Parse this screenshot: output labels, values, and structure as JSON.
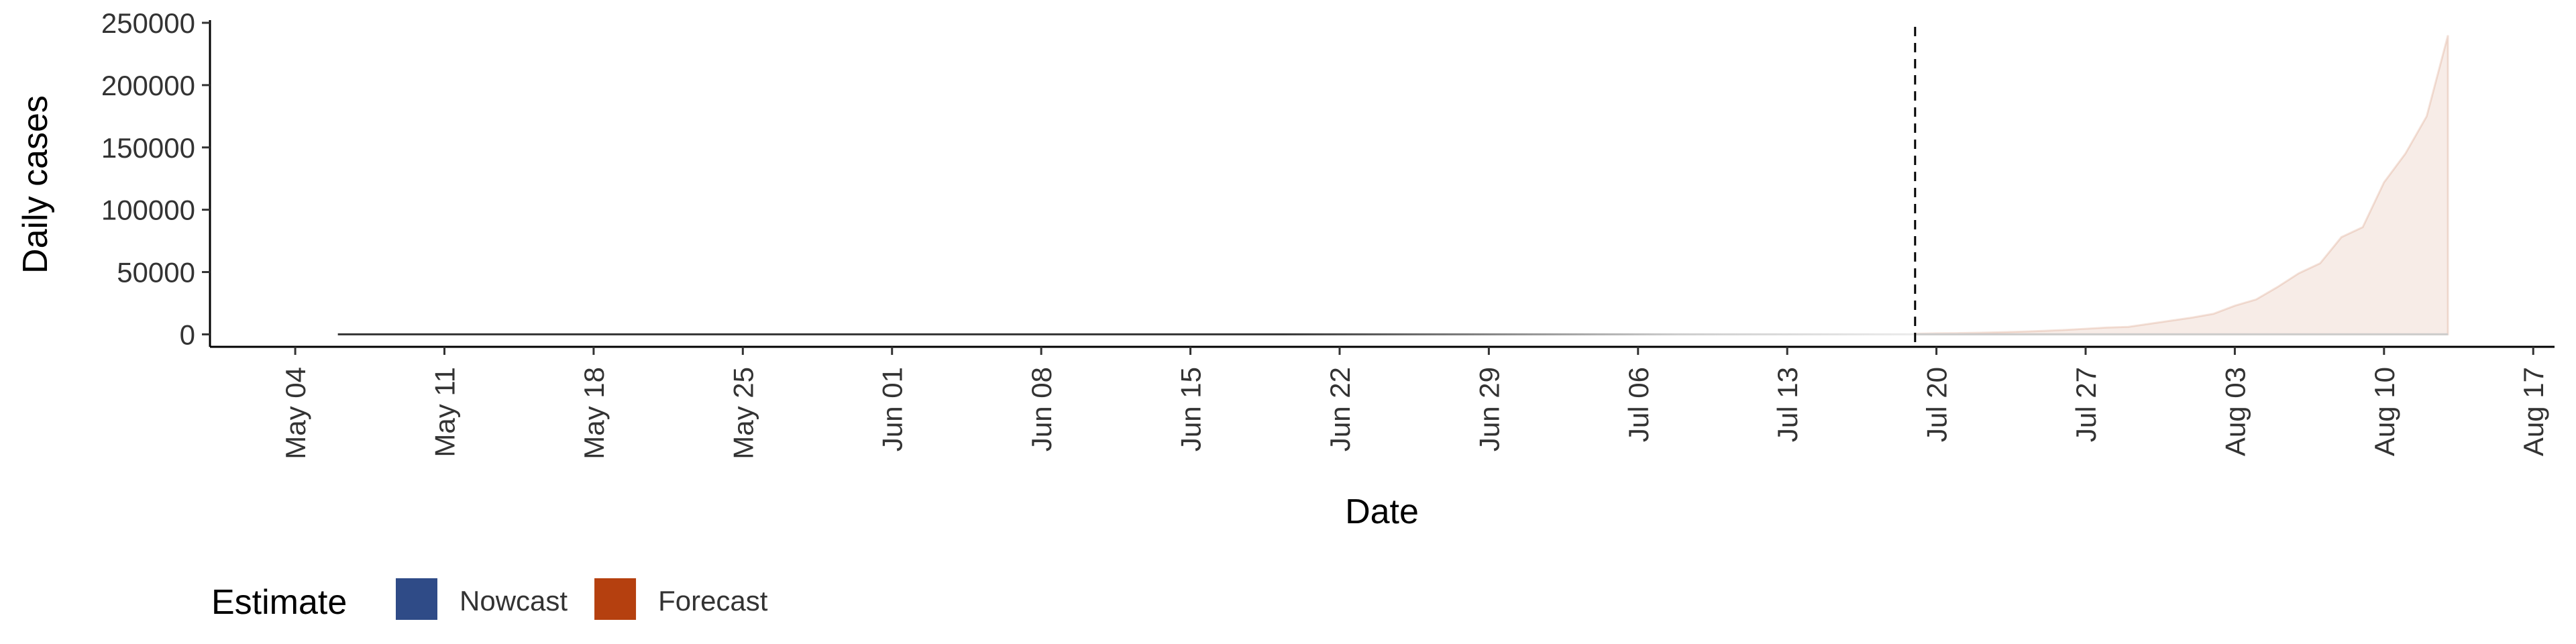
{
  "chart_data": {
    "type": "area",
    "x_label": "Date",
    "y_label": "Daily cases",
    "legend_title": "Estimate",
    "xlim": [
      "Apr 30",
      "Aug 18"
    ],
    "xticks": [
      "May 04",
      "May 11",
      "May 18",
      "May 25",
      "Jun 01",
      "Jun 08",
      "Jun 15",
      "Jun 22",
      "Jun 29",
      "Jul 06",
      "Jul 13",
      "Jul 20",
      "Jul 27",
      "Aug 03",
      "Aug 10",
      "Aug 17"
    ],
    "ylim": [
      -10000,
      250000
    ],
    "yticks": [
      0,
      50000,
      100000,
      150000,
      200000,
      250000
    ],
    "vline": "Jul 19",
    "line_color": "#333333",
    "series": [
      {
        "name": "Nowcast",
        "color": "#2f4b87",
        "x": [
          "May 06",
          "Jun 01",
          "Jun 26",
          "Jul 19"
        ],
        "values": [
          0,
          0,
          0,
          0
        ]
      },
      {
        "name": "Forecast",
        "color": "#b5400f",
        "x": [
          "Jul 19",
          "Jul 20",
          "Jul 21",
          "Jul 22",
          "Jul 23",
          "Jul 24",
          "Jul 25",
          "Jul 26",
          "Jul 27",
          "Jul 28",
          "Jul 29",
          "Jul 30",
          "Jul 31",
          "Aug 01",
          "Aug 02",
          "Aug 03",
          "Aug 04",
          "Aug 05",
          "Aug 06",
          "Aug 07",
          "Aug 08",
          "Aug 09",
          "Aug 10",
          "Aug 11",
          "Aug 12",
          "Aug 13"
        ],
        "values": [
          500,
          800,
          1000,
          1300,
          1700,
          2200,
          2800,
          3500,
          4500,
          5500,
          6000,
          8500,
          11000,
          13500,
          16500,
          23000,
          28000,
          38000,
          49000,
          57000,
          78000,
          86000,
          122000,
          145000,
          175000,
          240000
        ]
      }
    ]
  }
}
